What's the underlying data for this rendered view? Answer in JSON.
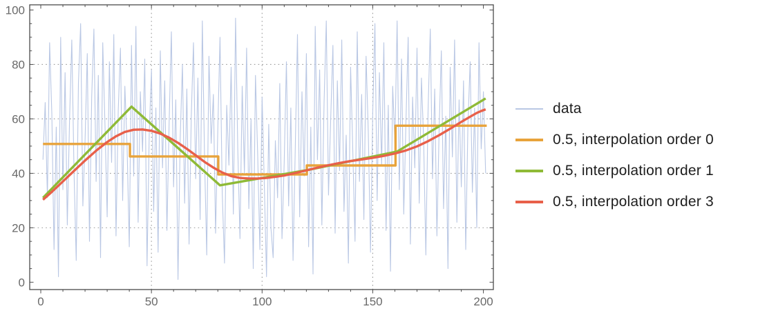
{
  "figure": {
    "background": "#ffffff"
  },
  "legend": {
    "position": "right",
    "text_color": "#1e1e1e"
  },
  "chart_data": {
    "type": "line",
    "title": "",
    "xlabel": "",
    "ylabel": "",
    "xlim": [
      -5,
      204.5
    ],
    "ylim": [
      -2.7,
      101.9
    ],
    "x_major_ticks": [
      0,
      50,
      100,
      150,
      200
    ],
    "x_tick_labels": [
      "0",
      "50",
      "100",
      "150",
      "200"
    ],
    "x_minor_tick_step": 10,
    "y_major_ticks": [
      0,
      20,
      40,
      60,
      80,
      100
    ],
    "y_tick_labels": [
      "0",
      "20",
      "40",
      "60",
      "80",
      "100"
    ],
    "y_minor_tick_step": 5,
    "grid_on": true,
    "gridlines": {
      "x": [
        50,
        100,
        150
      ],
      "y": [
        20,
        40,
        60,
        80
      ],
      "style": "dotted",
      "color": "#9a9a9a"
    },
    "frame_color": "#4a4a4a",
    "tick_label_color": "#696969",
    "tick_label_size": 17,
    "legend_position": "right",
    "series": [
      {
        "name": "data",
        "type": "noise-line",
        "color": "#b9c7e4",
        "width": 1.1,
        "swatch_thickness": 2,
        "x_start": 1,
        "x_step": 1,
        "values": [
          45,
          66,
          31,
          88,
          62,
          12,
          57,
          2,
          90,
          34,
          77,
          21,
          60,
          89,
          41,
          8,
          73,
          95,
          28,
          52,
          84,
          15,
          68,
          93,
          37,
          76,
          9,
          88,
          58,
          24,
          81,
          44,
          91,
          17,
          63,
          86,
          30,
          72,
          50,
          13,
          87,
          39,
          94,
          22,
          70,
          48,
          82,
          6,
          55,
          78,
          26,
          64,
          11,
          85,
          42,
          74,
          19,
          59,
          92,
          35,
          67,
          1,
          53,
          80,
          29,
          71,
          14,
          61,
          88,
          38,
          75,
          23,
          96,
          46,
          10,
          83,
          51,
          69,
          18,
          56,
          90,
          33,
          7,
          65,
          43,
          79,
          25,
          97,
          49,
          16,
          72,
          40,
          86,
          27,
          60,
          5,
          76,
          47,
          12,
          68,
          36,
          2,
          58,
          20,
          9,
          52,
          31,
          73,
          16,
          44,
          81,
          28,
          64,
          8,
          49,
          91,
          24,
          70,
          39,
          84,
          13,
          57,
          3,
          94,
          45,
          78,
          21,
          66,
          96,
          32,
          60,
          87,
          18,
          74,
          41,
          89,
          26,
          54,
          7,
          79,
          48,
          15,
          92,
          37,
          69,
          23,
          83,
          55,
          11,
          62,
          95,
          30,
          77,
          43,
          88,
          19,
          65,
          4,
          72,
          51,
          96,
          34,
          82,
          25,
          59,
          90,
          14,
          68,
          42,
          86,
          29,
          75,
          52,
          10,
          63,
          93,
          38,
          71,
          17,
          56,
          85,
          27,
          61,
          5,
          79,
          46,
          89,
          22,
          67,
          35,
          74,
          12,
          58,
          81,
          33,
          64,
          20,
          88,
          49,
          70,
          40
        ]
      },
      {
        "name": "0.5, interpolation order 0",
        "type": "step",
        "color": "#e8a33b",
        "width": 3.4,
        "swatch_thickness": 4,
        "breaks": [
          1,
          40.3,
          80.2,
          120.2,
          160.3,
          201.5
        ],
        "levels": [
          50.8,
          46.2,
          39.6,
          42.9,
          57.5
        ]
      },
      {
        "name": "0.5, interpolation order 1",
        "type": "polyline",
        "color": "#8fba37",
        "width": 3.4,
        "swatch_thickness": 4,
        "points": [
          [
            1,
            31
          ],
          [
            41,
            64.5
          ],
          [
            81,
            35.6
          ],
          [
            121,
            41.3
          ],
          [
            161,
            48
          ],
          [
            201,
            67.5
          ]
        ]
      },
      {
        "name": "0.5, interpolation order 3",
        "type": "polyline",
        "color": "#e8604a",
        "width": 3.4,
        "swatch_thickness": 4,
        "points": [
          [
            1,
            30.3
          ],
          [
            5,
            33.2
          ],
          [
            10,
            37.0
          ],
          [
            15,
            40.9
          ],
          [
            20,
            44.7
          ],
          [
            25,
            48.3
          ],
          [
            30,
            51.5
          ],
          [
            34,
            53.6
          ],
          [
            38,
            55.2
          ],
          [
            42,
            56.0
          ],
          [
            46,
            56.1
          ],
          [
            50,
            55.6
          ],
          [
            54,
            54.6
          ],
          [
            58,
            53.1
          ],
          [
            62,
            51.2
          ],
          [
            66,
            49.0
          ],
          [
            70,
            46.6
          ],
          [
            74,
            44.2
          ],
          [
            78,
            42.1
          ],
          [
            82,
            40.3
          ],
          [
            86,
            39.0
          ],
          [
            90,
            38.3
          ],
          [
            94,
            38.1
          ],
          [
            98,
            38.1
          ],
          [
            102,
            38.3
          ],
          [
            106,
            38.7
          ],
          [
            110,
            39.2
          ],
          [
            115,
            40.1
          ],
          [
            120,
            41.1
          ],
          [
            125,
            42.1
          ],
          [
            130,
            43.0
          ],
          [
            135,
            43.8
          ],
          [
            140,
            44.5
          ],
          [
            145,
            45.1
          ],
          [
            150,
            45.7
          ],
          [
            155,
            46.4
          ],
          [
            160,
            47.3
          ],
          [
            165,
            48.4
          ],
          [
            170,
            49.9
          ],
          [
            175,
            51.8
          ],
          [
            180,
            54.0
          ],
          [
            185,
            56.4
          ],
          [
            190,
            58.9
          ],
          [
            194,
            60.8
          ],
          [
            197,
            62.2
          ],
          [
            199,
            62.9
          ],
          [
            201,
            63.5
          ]
        ]
      }
    ]
  }
}
